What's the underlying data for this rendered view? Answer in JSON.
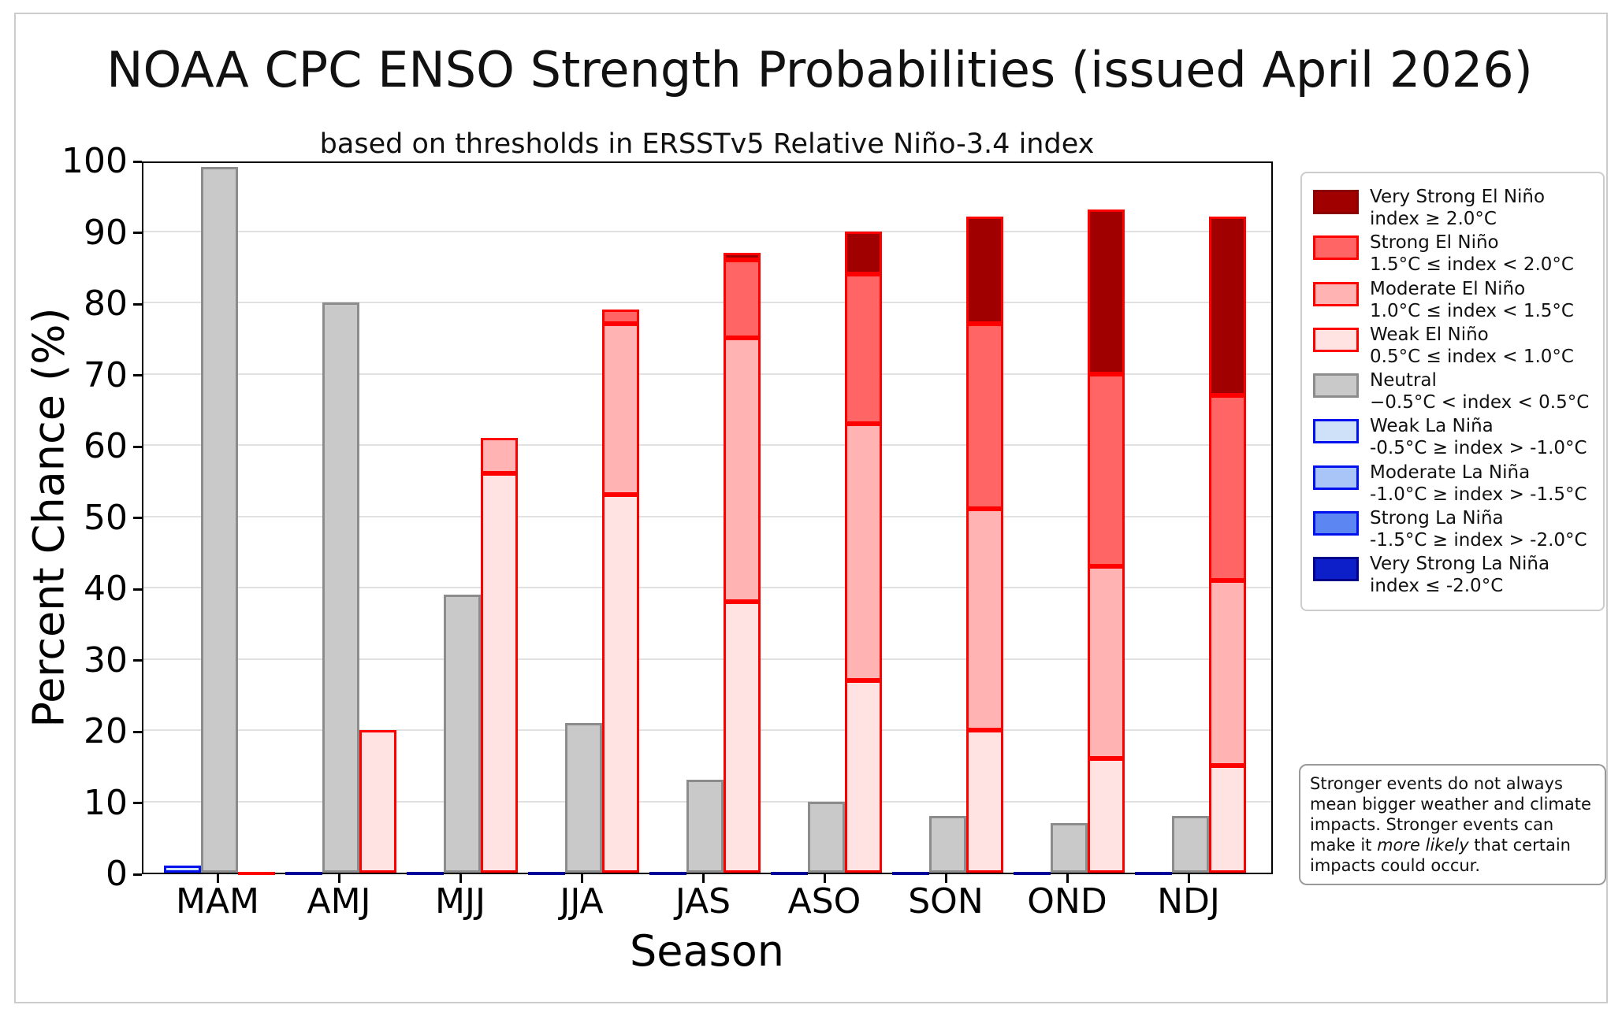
{
  "title": "NOAA CPC ENSO Strength Probabilities (issued April 2026)",
  "subtitle": "based on thresholds in ERSSTv5 Relative Niño-3.4 index",
  "chart_data": {
    "type": "bar",
    "stacked": true,
    "title": "NOAA CPC ENSO Strength Probabilities (issued April 2026)",
    "subtitle": "based on thresholds in ERSSTv5 Relative Niño-3.4 index",
    "xlabel": "Season",
    "ylabel": "Percent Chance (%)",
    "ylim": [
      0,
      100
    ],
    "yticks": [
      0,
      10,
      20,
      30,
      40,
      50,
      60,
      70,
      80,
      90,
      100
    ],
    "grid": "horizontal",
    "legend_position": "right",
    "categories": [
      "MAM",
      "AMJ",
      "MJJ",
      "JJA",
      "JAS",
      "ASO",
      "SON",
      "OND",
      "NDJ"
    ],
    "bar_groups": [
      {
        "key": "la_nina",
        "zero_line_color": "#000099"
      },
      {
        "key": "neutral",
        "zero_line_color": "#8c8c8c"
      },
      {
        "key": "el_nino",
        "zero_line_color": "#ff0000"
      }
    ],
    "series": [
      {
        "name": "Weak La Niña",
        "group": "la_nina",
        "fill": "#cfe0f9",
        "edge": "#0011ee",
        "values": [
          1,
          0,
          0,
          0,
          0,
          0,
          0,
          0,
          0
        ]
      },
      {
        "name": "Moderate La Niña",
        "group": "la_nina",
        "fill": "#a9c4f7",
        "edge": "#0011ee",
        "values": [
          0,
          0,
          0,
          0,
          0,
          0,
          0,
          0,
          0
        ]
      },
      {
        "name": "Strong La Niña",
        "group": "la_nina",
        "fill": "#5c86f2",
        "edge": "#0011ee",
        "values": [
          0,
          0,
          0,
          0,
          0,
          0,
          0,
          0,
          0
        ]
      },
      {
        "name": "Very Strong La Niña",
        "group": "la_nina",
        "fill": "#0d1fc8",
        "edge": "#00008b",
        "values": [
          0,
          0,
          0,
          0,
          0,
          0,
          0,
          0,
          0
        ]
      },
      {
        "name": "Neutral",
        "group": "neutral",
        "fill": "#c9c9c9",
        "edge": "#8c8c8c",
        "values": [
          99,
          80,
          39,
          21,
          13,
          10,
          8,
          7,
          8
        ]
      },
      {
        "name": "Weak El Niño",
        "group": "el_nino",
        "fill": "#ffe2e2",
        "edge": "#ff0000",
        "values": [
          0,
          20,
          56,
          53,
          38,
          27,
          20,
          16,
          15
        ]
      },
      {
        "name": "Moderate El Niño",
        "group": "el_nino",
        "fill": "#ffb3b3",
        "edge": "#ff0000",
        "values": [
          0,
          0,
          5,
          24,
          37,
          36,
          31,
          27,
          26
        ]
      },
      {
        "name": "Strong El Niño",
        "group": "el_nino",
        "fill": "#ff6565",
        "edge": "#ff0000",
        "values": [
          0,
          0,
          0,
          2,
          11,
          21,
          26,
          27,
          26
        ]
      },
      {
        "name": "Very Strong El Niño",
        "group": "el_nino",
        "fill": "#a00000",
        "edge": "#ff0000",
        "values": [
          0,
          0,
          0,
          0,
          1,
          6,
          15,
          23,
          25
        ]
      }
    ]
  },
  "legend": {
    "entries": [
      {
        "label": "Very Strong El Niño",
        "range": "index ≥ 2.0°C",
        "fill": "#a00000",
        "edge": "#8b0000"
      },
      {
        "label": "Strong El Niño",
        "range": "1.5°C ≤ index < 2.0°C",
        "fill": "#ff6565",
        "edge": "#ff0000"
      },
      {
        "label": "Moderate El Niño",
        "range": "1.0°C ≤ index < 1.5°C",
        "fill": "#ffb3b3",
        "edge": "#ff0000"
      },
      {
        "label": "Weak El Niño",
        "range": "0.5°C ≤ index < 1.0°C",
        "fill": "#ffe2e2",
        "edge": "#ff0000"
      },
      {
        "label": "Neutral",
        "range": "−0.5°C < index < 0.5°C",
        "fill": "#c9c9c9",
        "edge": "#8c8c8c"
      },
      {
        "label": "Weak La Niña",
        "range": "-0.5°C ≥ index > -1.0°C",
        "fill": "#cfe0f9",
        "edge": "#0011ee"
      },
      {
        "label": "Moderate La Niña",
        "range": "-1.0°C ≥ index > -1.5°C",
        "fill": "#a9c4f7",
        "edge": "#0011ee"
      },
      {
        "label": "Strong La Niña",
        "range": "-1.5°C ≥ index > -2.0°C",
        "fill": "#5c86f2",
        "edge": "#0011ee"
      },
      {
        "label": "Very Strong La Niña",
        "range": "index ≤ -2.0°C",
        "fill": "#0d1fc8",
        "edge": "#00008b"
      }
    ]
  },
  "note": {
    "text_before": "Stronger events do not always mean bigger weather and climate impacts. Stronger events can make it ",
    "italic": "more likely",
    "text_after": " that certain impacts could occur."
  }
}
